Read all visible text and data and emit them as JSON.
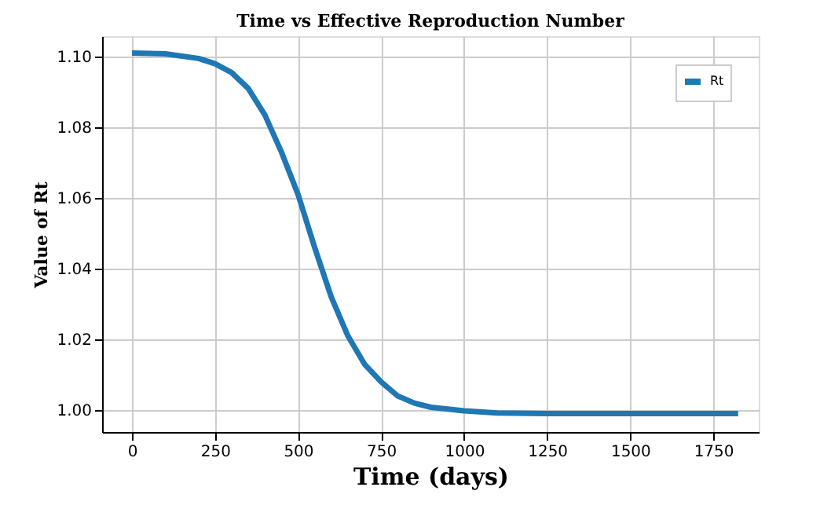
{
  "chart_data": {
    "type": "line",
    "title": "Time vs Effective Reproduction Number",
    "xlabel": "Time (days)",
    "ylabel": "Value of Rt",
    "x": [
      0,
      100,
      200,
      250,
      300,
      350,
      400,
      450,
      500,
      550,
      600,
      650,
      700,
      750,
      800,
      850,
      900,
      1000,
      1100,
      1250,
      1500,
      1825
    ],
    "series": [
      {
        "name": "Rt",
        "color": "#1f77b4",
        "values": [
          1.101,
          1.1008,
          1.0995,
          1.098,
          1.0955,
          1.091,
          1.0835,
          1.073,
          1.061,
          1.046,
          1.032,
          1.021,
          1.013,
          1.008,
          1.004,
          1.002,
          1.0008,
          0.9998,
          0.9992,
          0.999,
          0.999,
          0.999
        ]
      }
    ],
    "xlim": [
      -90,
      1887
    ],
    "xticks": [
      0,
      250,
      500,
      750,
      1000,
      1250,
      1500,
      1750
    ],
    "ylim": [
      0.9938,
      1.1058
    ],
    "yticks": [
      {
        "value": 1.0,
        "label": "1.00"
      },
      {
        "value": 1.02,
        "label": "1.02"
      },
      {
        "value": 1.04,
        "label": "1.04"
      },
      {
        "value": 1.06,
        "label": "1.06"
      },
      {
        "value": 1.08,
        "label": "1.08"
      },
      {
        "value": 1.1,
        "label": "1.10"
      }
    ],
    "grid": true,
    "legend": "top right",
    "line_style": "solid",
    "marker": "none"
  }
}
